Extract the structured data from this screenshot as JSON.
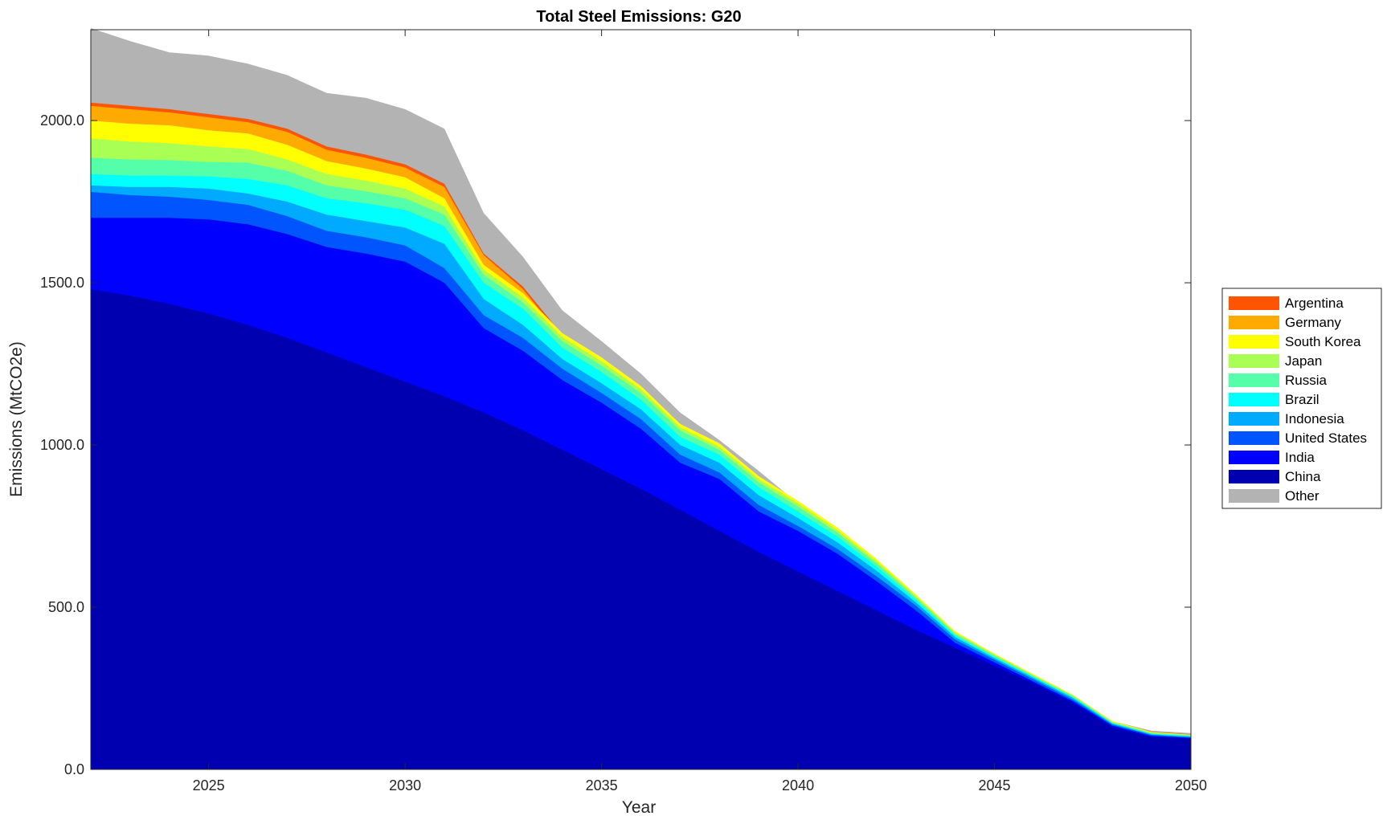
{
  "chart_data": {
    "type": "area",
    "stacked": true,
    "title": "Total Steel Emissions: G20",
    "xlabel": "Year",
    "ylabel": "Emissions (MtCO2e)",
    "xlim": [
      2022,
      2050
    ],
    "ylim": [
      0,
      2280
    ],
    "xticks": [
      2025,
      2030,
      2035,
      2040,
      2045,
      2050
    ],
    "xtick_labels": [
      "2025",
      "2030",
      "2035",
      "2040",
      "2045",
      "2050"
    ],
    "yticks": [
      0,
      500,
      1000,
      1500,
      2000
    ],
    "ytick_labels": [
      "0.0",
      "500.0",
      "1000.0",
      "1500.0",
      "2000.0"
    ],
    "grid": false,
    "legend_position": "right",
    "x": [
      2022,
      2023,
      2024,
      2025,
      2026,
      2027,
      2028,
      2029,
      2030,
      2031,
      2032,
      2033,
      2034,
      2035,
      2036,
      2037,
      2038,
      2039,
      2040,
      2041,
      2042,
      2043,
      2044,
      2045,
      2046,
      2047,
      2048,
      2049,
      2050
    ],
    "cumulative_totals": {
      "China": [
        1480,
        1460,
        1435,
        1405,
        1370,
        1330,
        1285,
        1240,
        1195,
        1150,
        1100,
        1045,
        985,
        925,
        865,
        800,
        735,
        670,
        610,
        550,
        490,
        430,
        375,
        320,
        265,
        205,
        130,
        100,
        95
      ],
      "India": [
        1700,
        1700,
        1700,
        1695,
        1680,
        1650,
        1610,
        1590,
        1565,
        1500,
        1360,
        1290,
        1200,
        1130,
        1050,
        945,
        895,
        795,
        735,
        665,
        580,
        490,
        390,
        330,
        270,
        210,
        135,
        103,
        97
      ],
      "United States": [
        1780,
        1770,
        1765,
        1755,
        1740,
        1705,
        1660,
        1640,
        1615,
        1545,
        1400,
        1330,
        1235,
        1160,
        1080,
        970,
        915,
        815,
        750,
        680,
        595,
        505,
        400,
        338,
        277,
        215,
        138,
        106,
        99
      ],
      "Indonesia": [
        1800,
        1795,
        1795,
        1790,
        1775,
        1750,
        1710,
        1690,
        1670,
        1620,
        1450,
        1370,
        1265,
        1190,
        1110,
        1000,
        945,
        845,
        775,
        700,
        612,
        515,
        408,
        343,
        282,
        220,
        141,
        108,
        101
      ],
      "Brazil": [
        1835,
        1830,
        1830,
        1828,
        1820,
        1800,
        1760,
        1745,
        1725,
        1675,
        1500,
        1420,
        1300,
        1225,
        1140,
        1025,
        970,
        870,
        795,
        718,
        625,
        523,
        413,
        347,
        285,
        223,
        143,
        110,
        103
      ],
      "Russia": [
        1885,
        1880,
        1878,
        1872,
        1870,
        1845,
        1800,
        1782,
        1760,
        1710,
        1525,
        1440,
        1320,
        1245,
        1160,
        1045,
        985,
        885,
        810,
        730,
        635,
        530,
        418,
        351,
        288,
        226,
        145,
        112,
        105
      ],
      "Japan": [
        1945,
        1935,
        1930,
        1920,
        1912,
        1880,
        1835,
        1815,
        1790,
        1735,
        1540,
        1455,
        1333,
        1258,
        1172,
        1055,
        995,
        895,
        820,
        738,
        642,
        535,
        422,
        354,
        290,
        228,
        147,
        113,
        106
      ],
      "South Korea": [
        2000,
        1990,
        1985,
        1970,
        1960,
        1925,
        1875,
        1852,
        1825,
        1760,
        1555,
        1468,
        1345,
        1270,
        1182,
        1065,
        1005,
        904,
        828,
        746,
        649,
        540,
        426,
        357,
        293,
        230,
        149,
        115,
        107
      ],
      "Germany": [
        2045,
        2035,
        2025,
        2010,
        1995,
        1965,
        1910,
        1885,
        1855,
        1795,
        1585,
        1480,
        1330,
        1250,
        1170,
        1045,
        985,
        885,
        805,
        725,
        632,
        525,
        415,
        348,
        285,
        224,
        145,
        114,
        106
      ],
      "Argentina": [
        2055,
        2045,
        2035,
        2020,
        2005,
        1975,
        1920,
        1895,
        1865,
        1805,
        1590,
        1488,
        1340,
        1258,
        1178,
        1052,
        991,
        890,
        810,
        730,
        637,
        529,
        418,
        351,
        288,
        227,
        147,
        116,
        108
      ],
      "Other": [
        2285,
        2245,
        2210,
        2200,
        2175,
        2140,
        2085,
        2070,
        2035,
        1975,
        1715,
        1580,
        1415,
        1320,
        1220,
        1100,
        1015,
        920,
        820,
        738,
        645,
        535,
        420,
        353,
        290,
        229,
        149,
        119,
        112
      ]
    },
    "series_order": [
      "China",
      "India",
      "United States",
      "Indonesia",
      "Brazil",
      "Russia",
      "Japan",
      "South Korea",
      "Germany",
      "Argentina",
      "Other"
    ],
    "legend_order": [
      "Argentina",
      "Germany",
      "South Korea",
      "Japan",
      "Russia",
      "Brazil",
      "Indonesia",
      "United States",
      "India",
      "China",
      "Other"
    ],
    "colors": {
      "China": "#0000b0",
      "India": "#0000ff",
      "United States": "#0055ff",
      "Indonesia": "#00aaff",
      "Brazil": "#00ffff",
      "Russia": "#55ffaa",
      "Japan": "#aaff55",
      "South Korea": "#ffff00",
      "Germany": "#ffaa00",
      "Argentina": "#ff5500",
      "Other": "#b3b3b3"
    }
  }
}
